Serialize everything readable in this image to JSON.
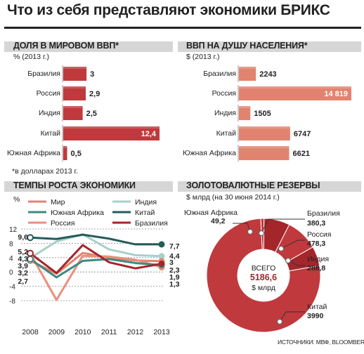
{
  "title": "Что из себя представляют экономики БРИКС",
  "source": "ИСТОЧНИКИ: МВФ, BLOOMBERG",
  "colors": {
    "dark_red": "#a3262b",
    "red": "#c0393d",
    "light_red": "#e2836f",
    "salmon": "#e8907c",
    "dark_teal": "#255b5c",
    "teal": "#3d8a82",
    "light_teal": "#a9cfca",
    "gray_bar": "#d6d6d6"
  },
  "gdp_share": {
    "title": "ДОЛЯ В МИРОВОМ ВВП*",
    "subtitle": "% (2013 г.)",
    "footnote": "*в долларах 2013 г."
  },
  "gdp_per_capita": {
    "title": "ВВП НА ДУШУ НАСЕЛЕНИЯ*",
    "subtitle": "$ (2013 г.)"
  },
  "growth": {
    "title": "ТЕМПЫ РОСТА ЭКОНОМИКИ",
    "unit": "%",
    "legend": [
      "Мир",
      "Индия",
      "Южная Африка",
      "Китай",
      "Россия",
      "Бразилия"
    ],
    "start_labels": [
      "9,6",
      "5,2",
      "4,3",
      "3,9",
      "3,2",
      "2,7"
    ],
    "end_labels": [
      "7,7",
      "4,4",
      "3",
      "2,3",
      "1,9",
      "1,3"
    ]
  },
  "reserves": {
    "title": "ЗОЛОТОВАЛЮТНЫЕ РЕЗЕРВЫ",
    "subtitle": "$ млрд (на 30 июня 2014 г.)",
    "center_label": "ВСЕГО",
    "center_value": "5186,6",
    "center_unit": "$ млрд",
    "slices": [
      {
        "name": "Китай",
        "value_label": "3990"
      },
      {
        "name": "Южная Африка",
        "value_label": "49,2"
      },
      {
        "name": "Бразилия",
        "value_label": "380,3"
      },
      {
        "name": "Россия",
        "value_label": "478,3"
      },
      {
        "name": "Индия",
        "value_label": "288,8"
      }
    ]
  },
  "chart_data": [
    {
      "type": "bar",
      "title": "ДОЛЯ В МИРОВОМ ВВП*",
      "subtitle": "% (2013 г.)",
      "categories": [
        "Бразилия",
        "Россия",
        "Индия",
        "Китай",
        "Южная Африка"
      ],
      "values": [
        3,
        2.9,
        2.5,
        12.4,
        0.5
      ],
      "value_labels": [
        "3",
        "2,9",
        "2,5",
        "12,4",
        "0,5"
      ],
      "orientation": "horizontal"
    },
    {
      "type": "bar",
      "title": "ВВП НА ДУШУ НАСЕЛЕНИЯ*",
      "subtitle": "$ (2013 г.)",
      "categories": [
        "Бразилия",
        "Россия",
        "Индия",
        "Китай",
        "Южная Африка"
      ],
      "values": [
        2243,
        14819,
        1505,
        6747,
        6621
      ],
      "value_labels": [
        "2243",
        "14 819",
        "1505",
        "6747",
        "6621"
      ],
      "orientation": "horizontal"
    },
    {
      "type": "line",
      "title": "ТЕМПЫ РОСТА ЭКОНОМИКИ",
      "ylabel": "%",
      "x": [
        2008,
        2009,
        2010,
        2011,
        2012,
        2013
      ],
      "y_ticks": [
        12,
        8,
        4,
        0,
        -4,
        -8
      ],
      "ylim": [
        -8,
        12
      ],
      "grid": true,
      "series": [
        {
          "name": "Мир",
          "color": "#e2836f",
          "values": [
            3.2,
            -0.5,
            5.3,
            4.0,
            3.2,
            3.0
          ]
        },
        {
          "name": "Индия",
          "color": "#a9cfca",
          "values": [
            3.9,
            8.5,
            10.5,
            6.3,
            4.7,
            4.4
          ]
        },
        {
          "name": "Южная Африка",
          "color": "#3d8a82",
          "values": [
            3.6,
            -1.5,
            3.1,
            3.6,
            2.5,
            1.9
          ]
        },
        {
          "name": "Китай",
          "color": "#255b5c",
          "values": [
            9.6,
            9.2,
            10.4,
            9.3,
            7.7,
            7.7
          ]
        },
        {
          "name": "Россия",
          "color": "#e8907c",
          "values": [
            5.2,
            -7.8,
            4.5,
            4.3,
            3.4,
            1.3
          ]
        },
        {
          "name": "Бразилия",
          "color": "#a3262b",
          "values": [
            5.2,
            -0.3,
            7.5,
            2.7,
            1.0,
            2.3
          ]
        }
      ]
    },
    {
      "type": "pie",
      "title": "ЗОЛОТОВАЛЮТНЫЕ РЕЗЕРВЫ",
      "subtitle": "$ млрд (на 30 июня 2014 г.)",
      "labels": [
        "Китай",
        "Южная Африка",
        "Бразилия",
        "Россия",
        "Индия"
      ],
      "values": [
        3990,
        49.2,
        380.3,
        478.3,
        288.8
      ],
      "total": 5186.6
    }
  ]
}
